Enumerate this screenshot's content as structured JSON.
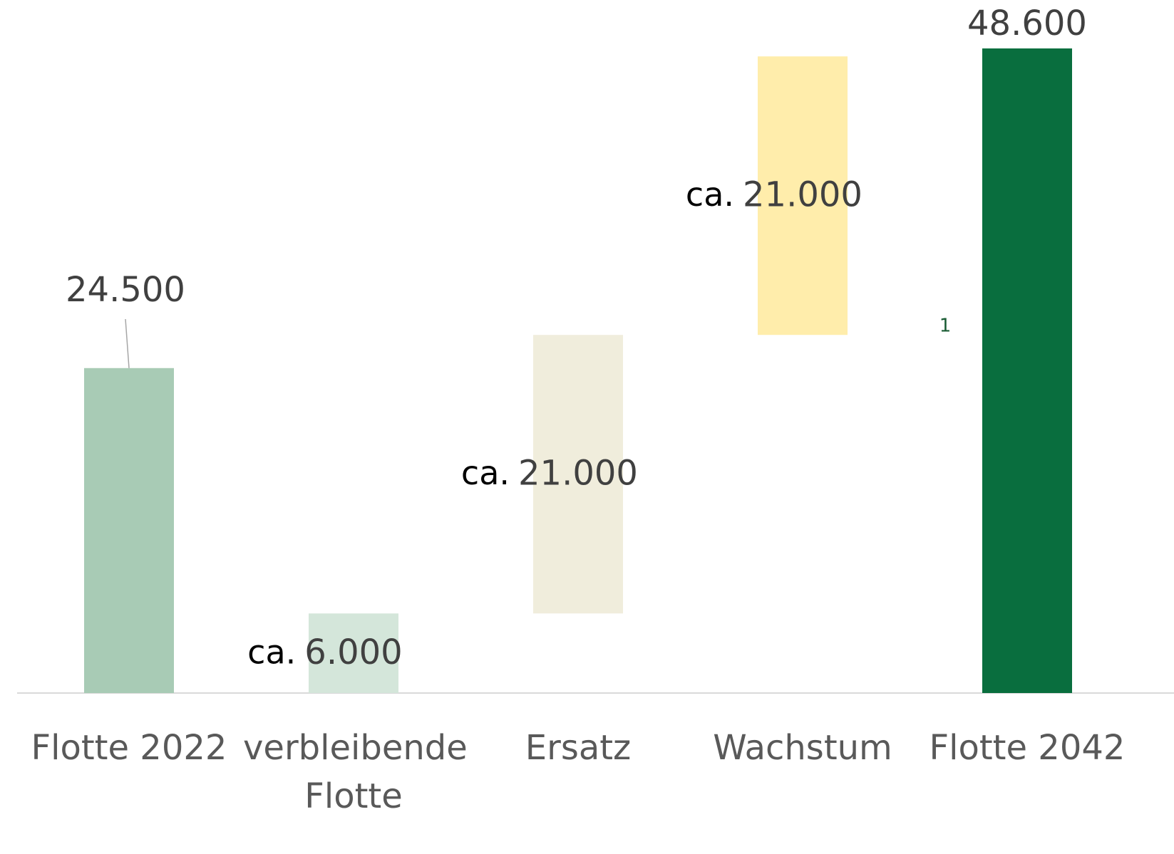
{
  "chart_data": {
    "type": "waterfall",
    "categories": [
      "Flotte 2022",
      "verbleibende Flotte",
      "Ersatz",
      "Wachstum",
      "Flotte 2042"
    ],
    "measures": [
      "absolute",
      "absolute",
      "relative",
      "relative",
      "total"
    ],
    "values": [
      24500,
      6000,
      21000,
      21000,
      48600
    ],
    "value_labels": [
      "24.500",
      "6.000",
      "21.000",
      "21.000",
      "48.600"
    ],
    "value_prefixes": [
      null,
      "ca.",
      "ca.",
      "ca.",
      null
    ],
    "colors": [
      "#a8cbb5",
      "#d4e6da",
      "#f0eddc",
      "#ffedab",
      "#096e3e"
    ],
    "annotation": "1"
  }
}
